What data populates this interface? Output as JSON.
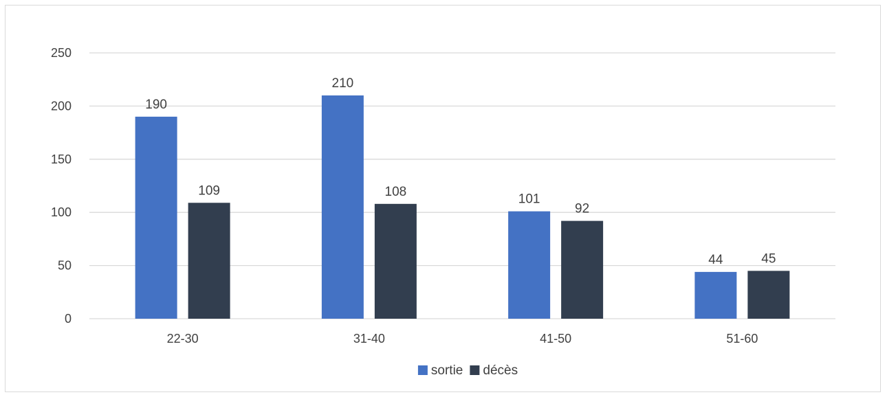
{
  "chart_data": {
    "type": "bar",
    "title": "",
    "xlabel": "",
    "ylabel": "",
    "categories": [
      "22-30",
      "31-40",
      "41-50",
      "51-60"
    ],
    "series": [
      {
        "name": "sortie",
        "color": "#4472c4",
        "values": [
          190,
          210,
          101,
          44
        ]
      },
      {
        "name": "décès",
        "color": "#323e4f",
        "values": [
          109,
          108,
          92,
          45
        ]
      }
    ],
    "ylim": [
      0,
      250
    ],
    "yticks": [
      "0",
      "50",
      "100",
      "150",
      "200",
      "250"
    ],
    "grid": true,
    "legend_position": "bottom",
    "gridline_color": "#d9d9d9"
  }
}
